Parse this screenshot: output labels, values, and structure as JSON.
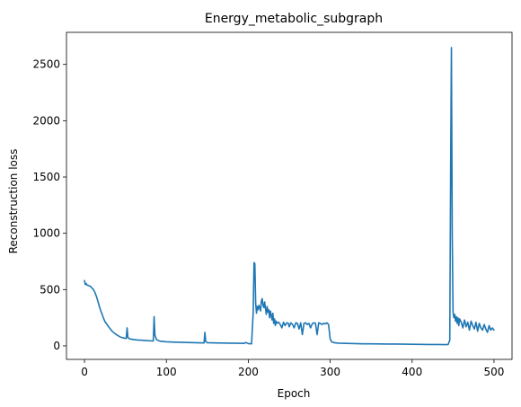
{
  "chart_data": {
    "type": "line",
    "title": "Energy_metabolic_subgraph",
    "xlabel": "Epoch",
    "ylabel": "Reconstruction loss",
    "xlim": [
      -22,
      522
    ],
    "ylim": [
      -120,
      2785
    ],
    "xticks": [
      0,
      100,
      200,
      300,
      400,
      500
    ],
    "yticks": [
      0,
      500,
      1000,
      1500,
      2000,
      2500
    ],
    "grid": false,
    "colors": {
      "line": "#1f77b4"
    },
    "series": [
      {
        "points": [
          [
            0,
            580
          ],
          [
            1,
            545
          ],
          [
            2,
            555
          ],
          [
            3,
            540
          ],
          [
            5,
            535
          ],
          [
            7,
            530
          ],
          [
            9,
            515
          ],
          [
            11,
            500
          ],
          [
            13,
            470
          ],
          [
            15,
            430
          ],
          [
            17,
            380
          ],
          [
            19,
            330
          ],
          [
            21,
            290
          ],
          [
            23,
            250
          ],
          [
            25,
            215
          ],
          [
            28,
            185
          ],
          [
            31,
            155
          ],
          [
            34,
            128
          ],
          [
            37,
            110
          ],
          [
            40,
            95
          ],
          [
            43,
            82
          ],
          [
            46,
            73
          ],
          [
            49,
            68
          ],
          [
            51,
            66
          ],
          [
            52,
            160
          ],
          [
            53,
            75
          ],
          [
            55,
            62
          ],
          [
            60,
            56
          ],
          [
            65,
            52
          ],
          [
            70,
            50
          ],
          [
            75,
            47
          ],
          [
            80,
            45
          ],
          [
            84,
            44
          ],
          [
            85,
            260
          ],
          [
            86,
            95
          ],
          [
            88,
            55
          ],
          [
            92,
            42
          ],
          [
            100,
            36
          ],
          [
            110,
            33
          ],
          [
            120,
            31
          ],
          [
            130,
            29
          ],
          [
            140,
            27
          ],
          [
            146,
            26
          ],
          [
            147,
            120
          ],
          [
            148,
            40
          ],
          [
            150,
            28
          ],
          [
            160,
            26
          ],
          [
            170,
            25
          ],
          [
            180,
            24
          ],
          [
            190,
            23
          ],
          [
            195,
            22
          ],
          [
            197,
            30
          ],
          [
            200,
            20
          ],
          [
            204,
            18
          ],
          [
            206,
            300
          ],
          [
            207,
            740
          ],
          [
            208,
            730
          ],
          [
            209,
            380
          ],
          [
            210,
            290
          ],
          [
            211,
            350
          ],
          [
            212,
            320
          ],
          [
            213,
            360
          ],
          [
            214,
            340
          ],
          [
            215,
            310
          ],
          [
            216,
            400
          ],
          [
            217,
            420
          ],
          [
            218,
            360
          ],
          [
            219,
            340
          ],
          [
            220,
            390
          ],
          [
            221,
            330
          ],
          [
            222,
            280
          ],
          [
            223,
            350
          ],
          [
            224,
            300
          ],
          [
            225,
            320
          ],
          [
            226,
            250
          ],
          [
            227,
            310
          ],
          [
            228,
            270
          ],
          [
            229,
            230
          ],
          [
            230,
            290
          ],
          [
            231,
            200
          ],
          [
            232,
            240
          ],
          [
            233,
            180
          ],
          [
            234,
            220
          ],
          [
            235,
            200
          ],
          [
            237,
            210
          ],
          [
            239,
            190
          ],
          [
            241,
            160
          ],
          [
            243,
            210
          ],
          [
            245,
            180
          ],
          [
            247,
            205
          ],
          [
            249,
            200
          ],
          [
            250,
            170
          ],
          [
            252,
            205
          ],
          [
            254,
            190
          ],
          [
            256,
            160
          ],
          [
            258,
            205
          ],
          [
            260,
            200
          ],
          [
            262,
            150
          ],
          [
            264,
            205
          ],
          [
            266,
            100
          ],
          [
            268,
            200
          ],
          [
            270,
            205
          ],
          [
            272,
            190
          ],
          [
            274,
            200
          ],
          [
            276,
            160
          ],
          [
            278,
            195
          ],
          [
            280,
            205
          ],
          [
            282,
            200
          ],
          [
            284,
            100
          ],
          [
            286,
            205
          ],
          [
            288,
            200
          ],
          [
            290,
            190
          ],
          [
            292,
            200
          ],
          [
            294,
            195
          ],
          [
            296,
            205
          ],
          [
            298,
            190
          ],
          [
            300,
            60
          ],
          [
            302,
            35
          ],
          [
            305,
            28
          ],
          [
            310,
            24
          ],
          [
            320,
            22
          ],
          [
            330,
            20
          ],
          [
            340,
            18
          ],
          [
            350,
            18
          ],
          [
            360,
            17
          ],
          [
            370,
            16
          ],
          [
            380,
            16
          ],
          [
            390,
            15
          ],
          [
            400,
            14
          ],
          [
            410,
            13
          ],
          [
            420,
            12
          ],
          [
            430,
            12
          ],
          [
            440,
            11
          ],
          [
            444,
            12
          ],
          [
            446,
            50
          ],
          [
            447,
            1500
          ],
          [
            448,
            2650
          ],
          [
            449,
            1000
          ],
          [
            450,
            300
          ],
          [
            451,
            250
          ],
          [
            452,
            280
          ],
          [
            453,
            220
          ],
          [
            454,
            260
          ],
          [
            455,
            200
          ],
          [
            456,
            250
          ],
          [
            457,
            180
          ],
          [
            458,
            240
          ],
          [
            460,
            210
          ],
          [
            462,
            160
          ],
          [
            464,
            230
          ],
          [
            466,
            170
          ],
          [
            468,
            210
          ],
          [
            470,
            140
          ],
          [
            472,
            220
          ],
          [
            474,
            180
          ],
          [
            476,
            150
          ],
          [
            478,
            210
          ],
          [
            480,
            130
          ],
          [
            482,
            200
          ],
          [
            484,
            160
          ],
          [
            486,
            140
          ],
          [
            488,
            190
          ],
          [
            490,
            150
          ],
          [
            492,
            120
          ],
          [
            494,
            180
          ],
          [
            496,
            140
          ],
          [
            498,
            160
          ],
          [
            500,
            140
          ]
        ]
      }
    ]
  }
}
